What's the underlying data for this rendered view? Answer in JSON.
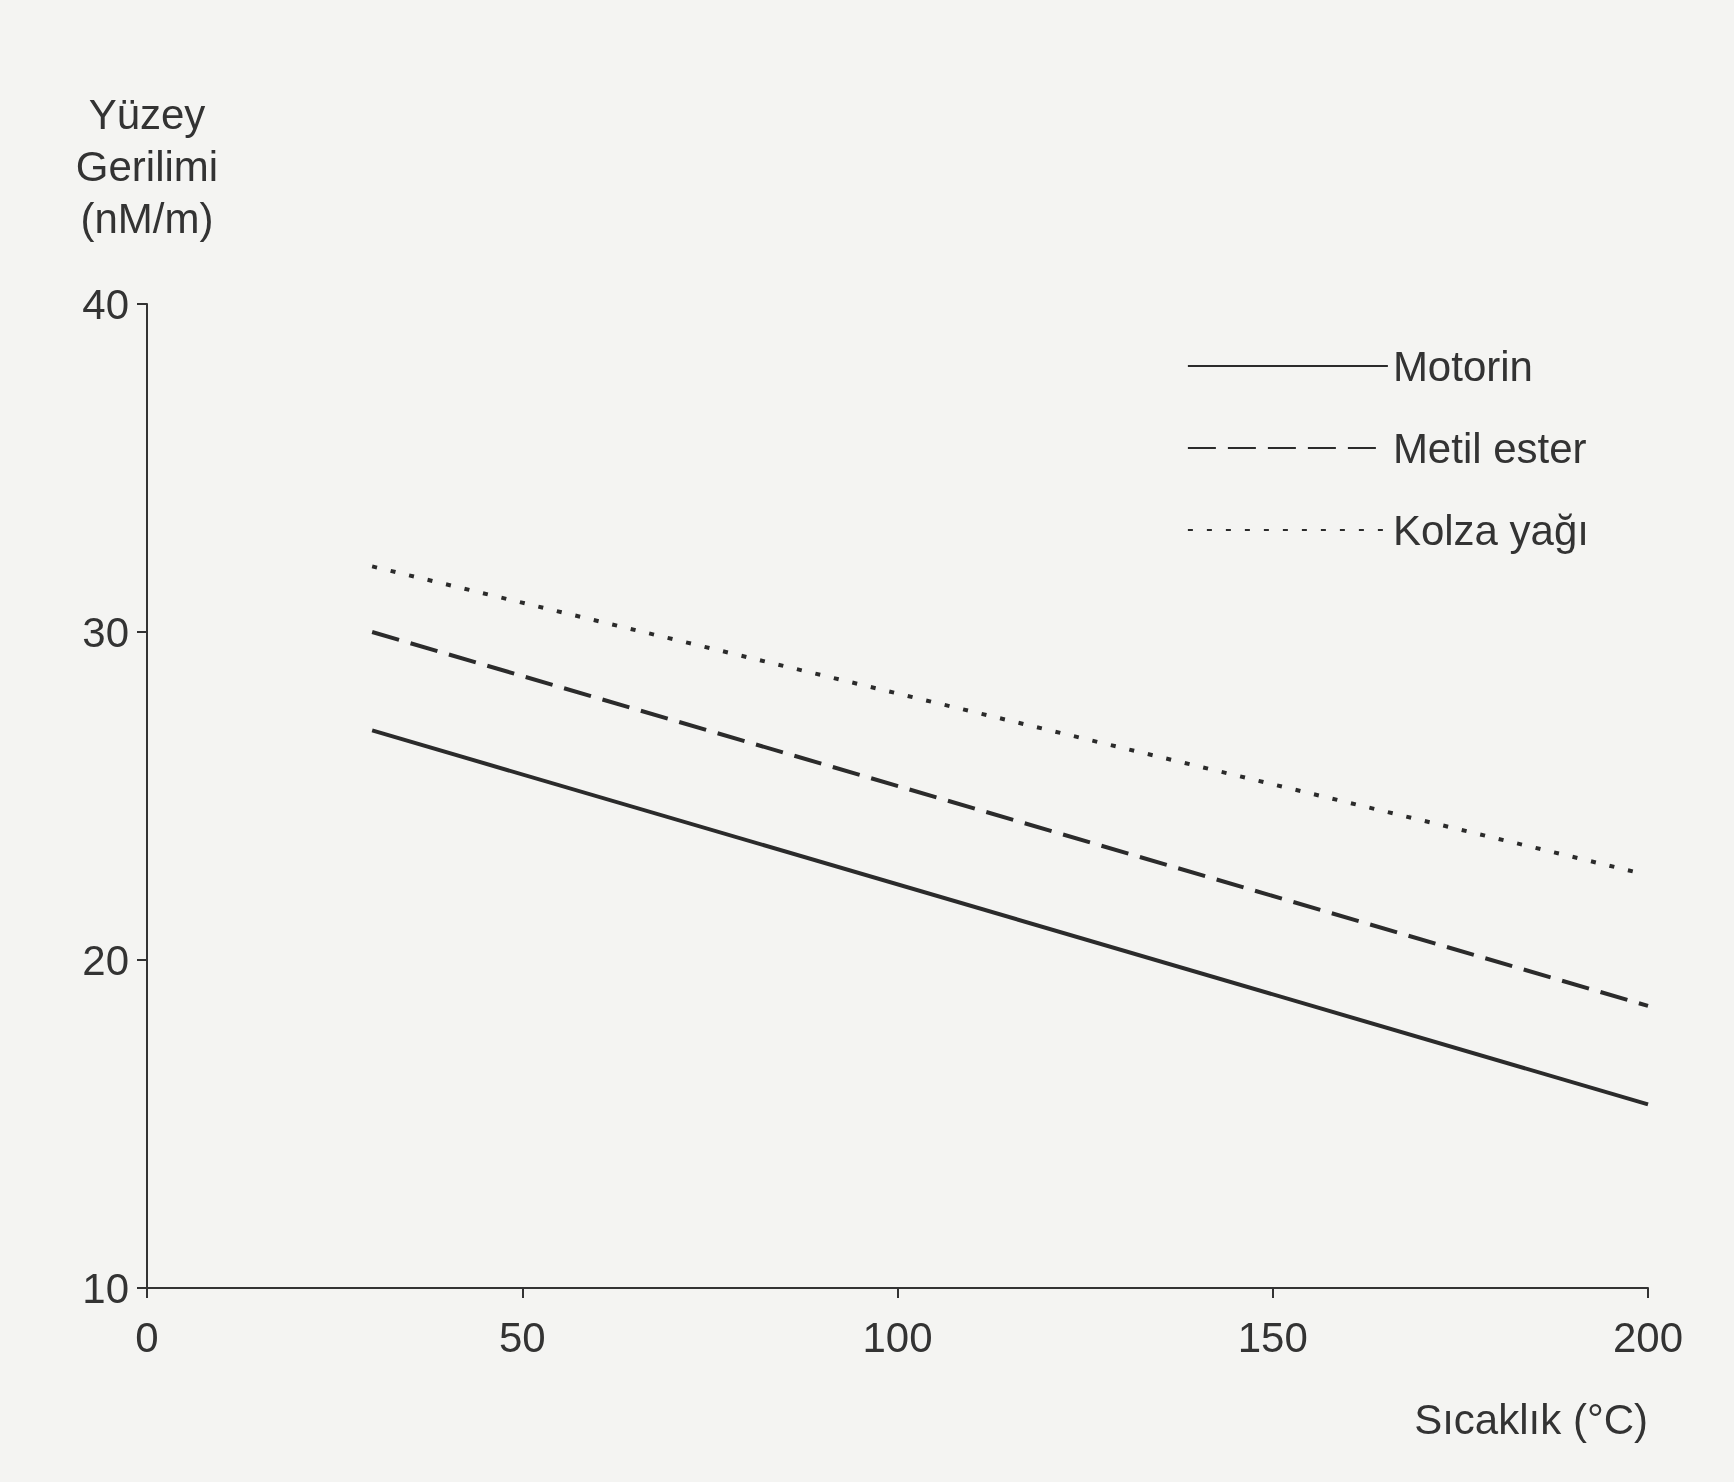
{
  "chart_data": {
    "type": "line",
    "xlabel": "Sıcaklık (°C)",
    "ylabel": "Yüzey\nGerilimi\n(nM/m)",
    "xlim": [
      0,
      200
    ],
    "xticks": [
      0,
      50,
      100,
      150,
      200
    ],
    "ylim": [
      10,
      40
    ],
    "yticks": [
      10,
      20,
      30,
      40
    ],
    "grid": false,
    "legend": "top right",
    "marker": "none",
    "series": [
      {
        "name": "Motorin",
        "color": "#2b2b2b",
        "line_style": "solid",
        "x": [
          30,
          200
        ],
        "values": [
          27,
          15.6
        ]
      },
      {
        "name": "Metil ester",
        "color": "#2b2b2b",
        "line_style": "dashed",
        "x": [
          30,
          200
        ],
        "values": [
          30,
          18.6
        ]
      },
      {
        "name": "Kolza yağı",
        "color": "#2b2b2b",
        "line_style": "dotted",
        "x": [
          30,
          198
        ],
        "values": [
          32,
          22.7
        ]
      }
    ]
  }
}
